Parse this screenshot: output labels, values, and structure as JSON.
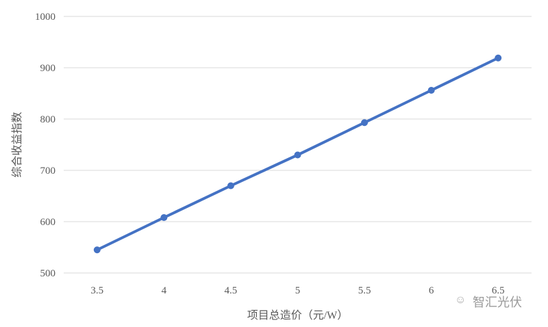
{
  "chart_data": {
    "type": "line",
    "title": "",
    "xlabel": "项目总造价（元/W）",
    "ylabel": "综合收益指数",
    "categories": [
      "3.5",
      "4",
      "4.5",
      "5",
      "5.5",
      "6",
      "6.5"
    ],
    "series": [
      {
        "values": [
          545,
          608,
          670,
          730,
          793,
          856,
          919
        ],
        "color": "#4472C4"
      }
    ],
    "ylim": [
      500,
      1000
    ],
    "yticks": [
      "500",
      "600",
      "700",
      "800",
      "900",
      "1000"
    ],
    "grid": true,
    "markers": true
  },
  "watermark": {
    "text": "智汇光伏",
    "icon": "wechat-icon"
  }
}
